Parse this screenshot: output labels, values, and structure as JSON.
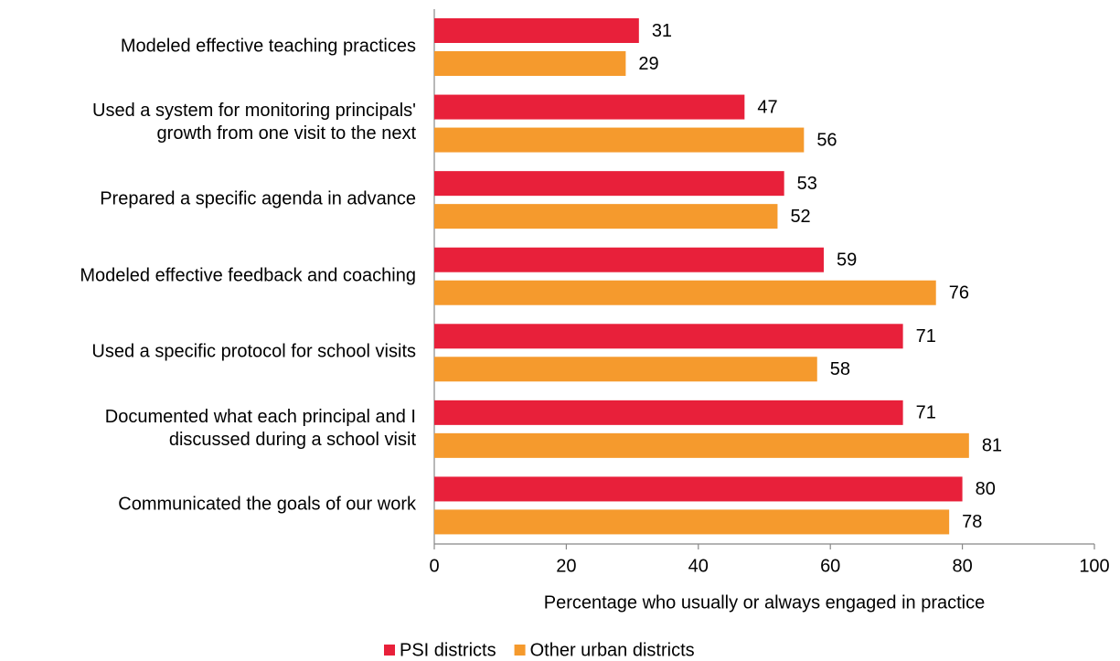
{
  "chart_data": {
    "type": "bar",
    "orientation": "horizontal",
    "categories": [
      "Modeled effective teaching practices",
      "Used a system for monitoring principals'\ngrowth from one visit to the next",
      "Prepared a specific agenda in advance",
      "Modeled effective feedback and coaching",
      "Used a specific protocol for school visits",
      "Documented what each principal and I\ndiscussed during a school visit",
      "Communicated the goals of our work"
    ],
    "series": [
      {
        "name": "PSI districts",
        "color": "#e8203a",
        "values": [
          31,
          47,
          53,
          59,
          71,
          71,
          80
        ]
      },
      {
        "name": "Other urban districts",
        "color": "#f59a2d",
        "values": [
          29,
          56,
          52,
          76,
          58,
          81,
          78
        ]
      }
    ],
    "xlabel": "Percentage who usually or always engaged in practice",
    "xlim": [
      0,
      100
    ],
    "xticks": [
      0,
      20,
      40,
      60,
      80,
      100
    ],
    "legend": "bottom"
  }
}
